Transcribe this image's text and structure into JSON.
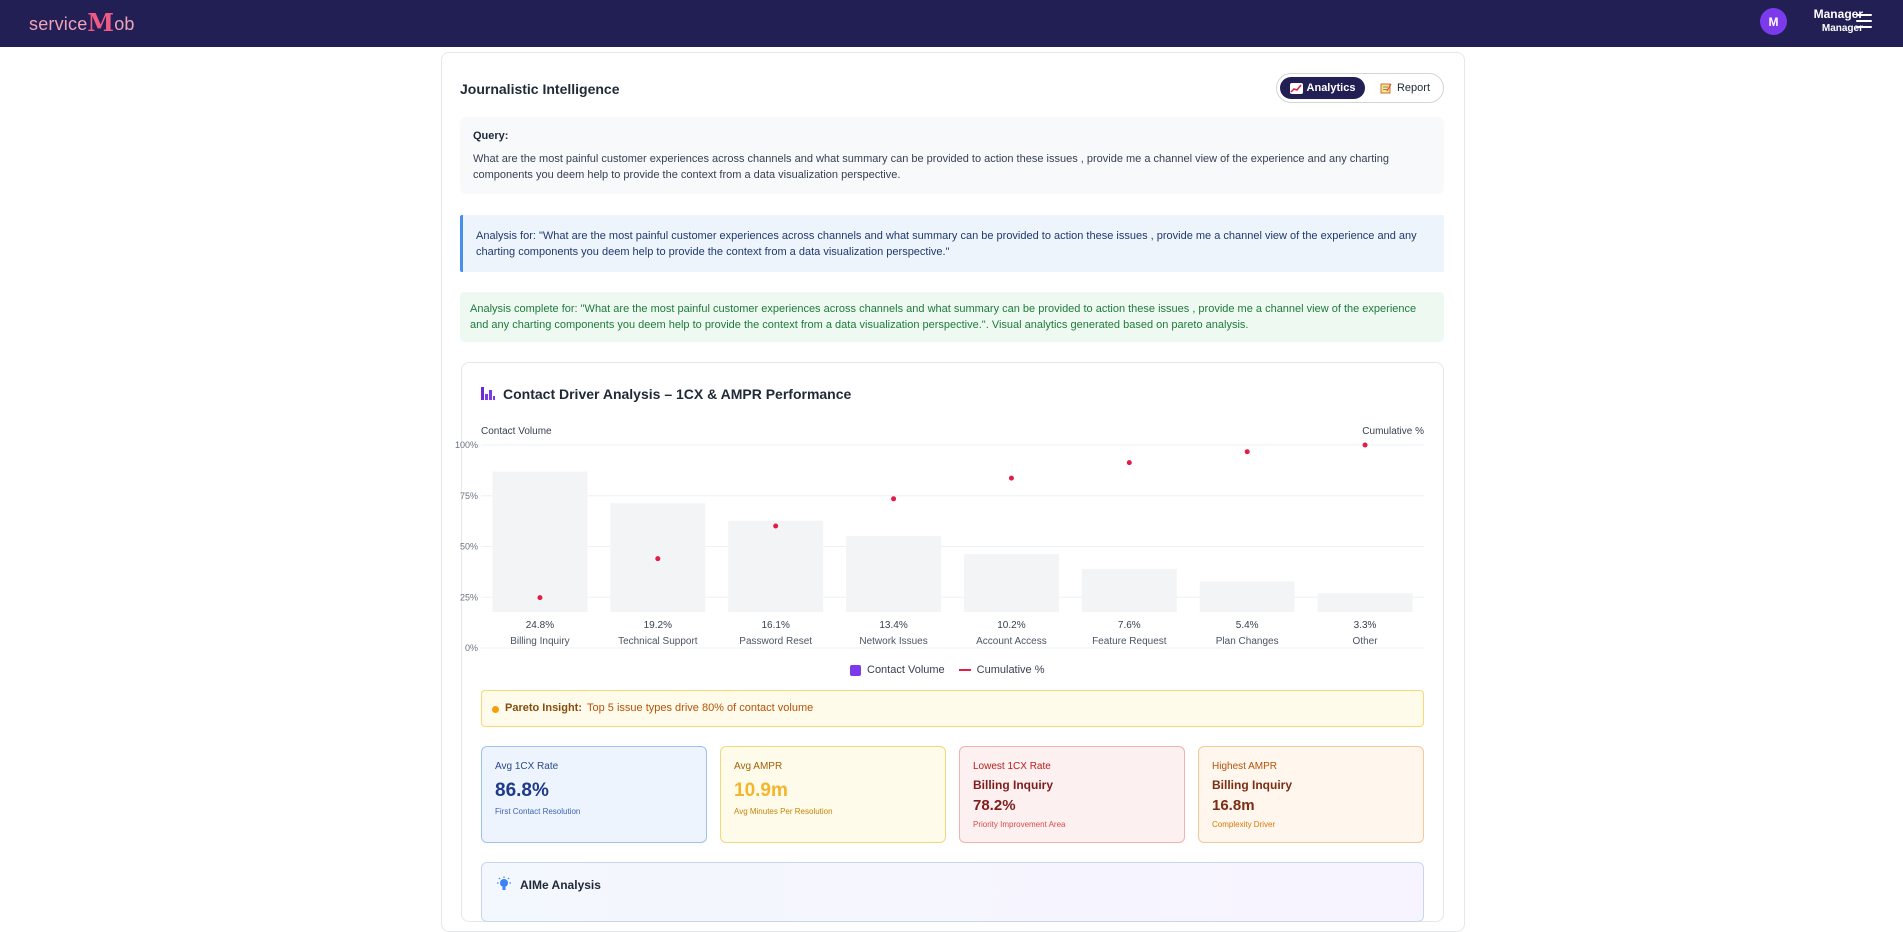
{
  "app": {
    "logo_prefix": "service",
    "logo_mark": "M",
    "logo_suffix": "ob",
    "user_initial": "M",
    "user_name": "Manager",
    "user_role": "Manager"
  },
  "page": {
    "title": "Journalistic Intelligence",
    "tabs": [
      {
        "label": "Analytics",
        "active": true,
        "icon": "chart-increasing-icon"
      },
      {
        "label": "Report",
        "active": false,
        "icon": "memo-icon"
      }
    ],
    "query_label": "Query:",
    "query_text": "What are the most painful customer experiences across channels and what summary can be provided to action these issues , provide me a channel view of the experience and any charting components you deem help to provide the context from a data visualization perspective.",
    "analysis_for": "Analysis for: \"What are the most painful customer experiences across channels and what summary can be provided to action these issues , provide me a channel view of the experience and any charting components you deem help to provide the context from a data visualization perspective.\"",
    "analysis_complete": "Analysis complete for: \"What are the most painful customer experiences across channels and what summary can be provided to action these issues , provide me a channel view of the experience and any charting components you deem help to provide the context from a data visualization perspective.\". Visual analytics generated based on pareto analysis."
  },
  "chart_data": {
    "type": "bar",
    "title": "Contact Driver Analysis – 1CX & AMPR Performance",
    "ylabel_left": "Contact Volume",
    "ylabel_right": "Cumulative %",
    "y_ticks": [
      "100%",
      "75%",
      "50%",
      "25%",
      "0%"
    ],
    "ylim": [
      0,
      100
    ],
    "grid": true,
    "legend_position": "bottom-center",
    "categories": [
      "Billing Inquiry",
      "Technical Support",
      "Password Reset",
      "Network Issues",
      "Account Access",
      "Feature Request",
      "Plan Changes",
      "Other"
    ],
    "value_labels": [
      "24.8%",
      "19.2%",
      "16.1%",
      "13.4%",
      "10.2%",
      "7.6%",
      "5.4%",
      "3.3%"
    ],
    "series": [
      {
        "name": "Contact Volume",
        "type": "bar",
        "color": "#f3f4f6",
        "values": [
          24.8,
          19.2,
          16.1,
          13.4,
          10.2,
          7.6,
          5.4,
          3.3
        ]
      },
      {
        "name": "Cumulative %",
        "type": "scatter",
        "color": "#e11d48",
        "values": [
          24.8,
          44,
          60.1,
          73.5,
          83.7,
          91.3,
          96.7,
          100
        ]
      }
    ]
  },
  "insight": {
    "label": "Pareto Insight:",
    "text": "Top 5 issue types drive 80% of contact volume"
  },
  "kpis": [
    {
      "label": "Avg 1CX Rate",
      "value": "86.8%",
      "sub": "First Contact Resolution"
    },
    {
      "label": "Avg AMPR",
      "value": "10.9m",
      "sub": "Avg Minutes Per Resolution"
    },
    {
      "label": "Lowest 1CX Rate",
      "name": "Billing Inquiry",
      "value": "78.2%",
      "sub": "Priority Improvement Area"
    },
    {
      "label": "Highest AMPR",
      "name": "Billing Inquiry",
      "value": "16.8m",
      "sub": "Complexity Driver"
    }
  ],
  "aime": {
    "title": "AIMe Analysis"
  }
}
